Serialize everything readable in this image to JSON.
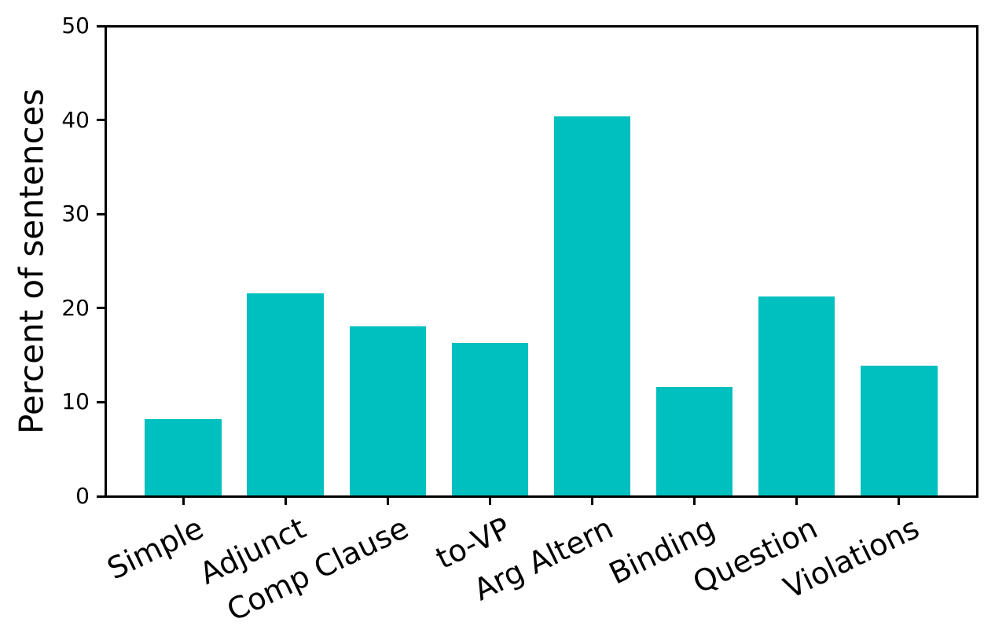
{
  "chart_data": {
    "type": "bar",
    "categories": [
      "Simple",
      "Adjunct",
      "Comp Clause",
      "to-VP",
      "Arg Altern",
      "Binding",
      "Question",
      "Violations"
    ],
    "values": [
      8.2,
      21.6,
      18.1,
      16.3,
      40.4,
      11.6,
      21.2,
      13.9
    ],
    "title": "",
    "xlabel": "",
    "ylabel": "Percent of sentences",
    "ylim": [
      0,
      50
    ],
    "yticks": [
      0,
      10,
      20,
      30,
      40,
      50
    ],
    "bar_color": "#00bfbf",
    "axis_color": "#000000",
    "background_color": "#ffffff",
    "grid": false,
    "legend": false,
    "xtick_rotation_deg": -26,
    "bar_width_fraction": 0.75
  }
}
